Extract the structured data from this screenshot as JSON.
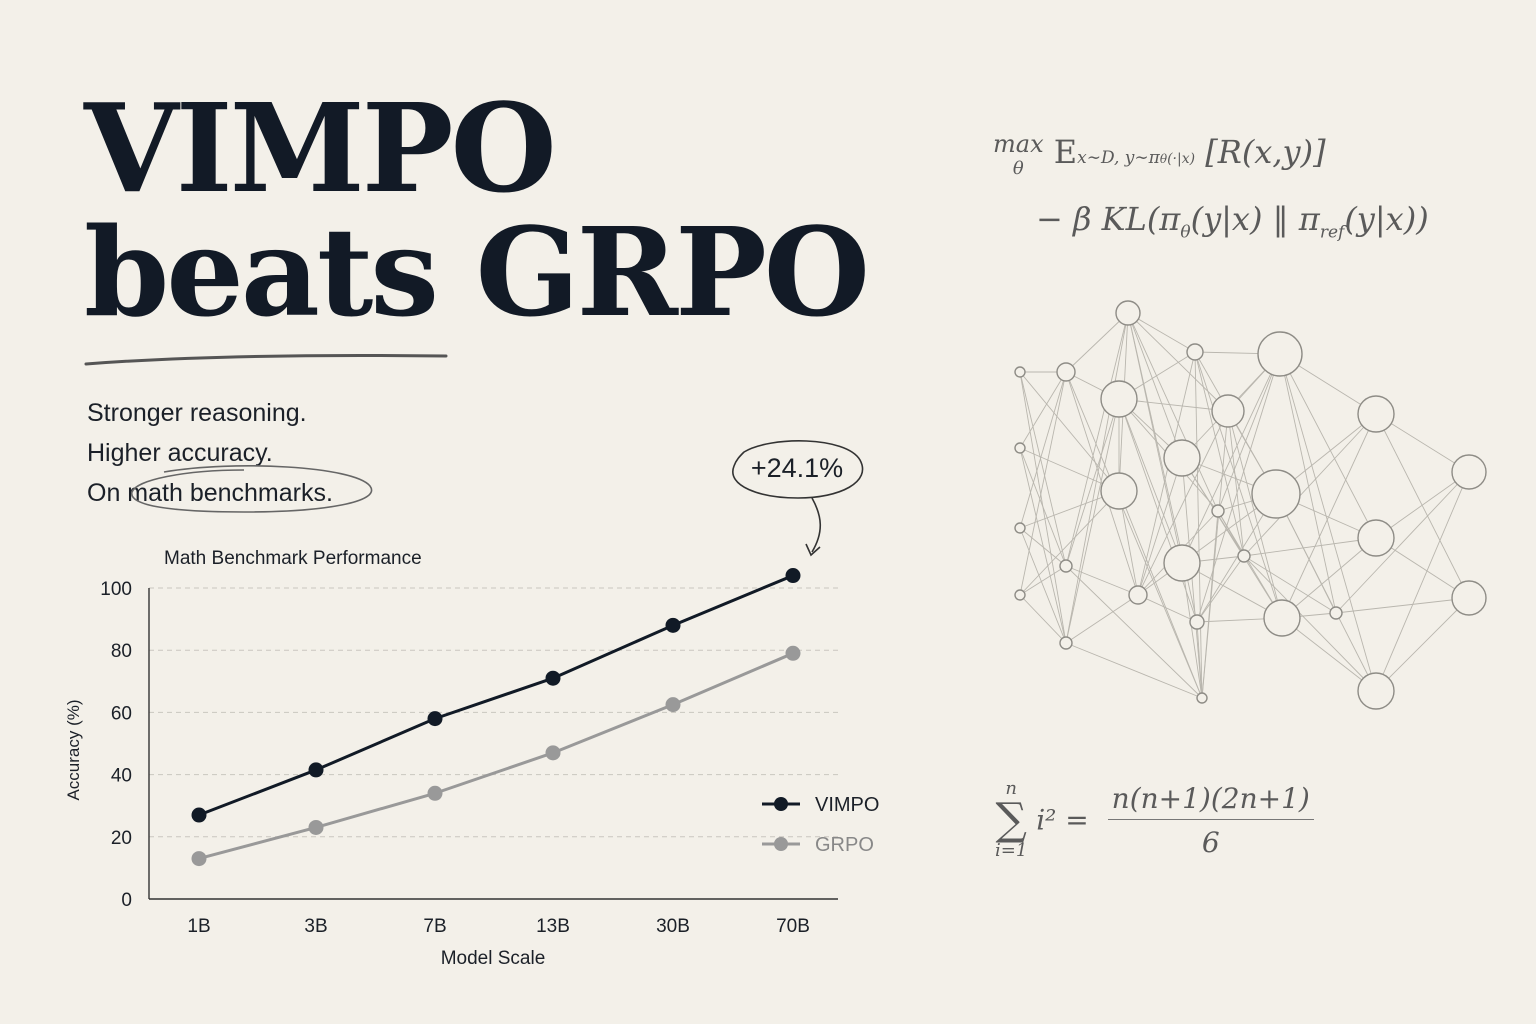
{
  "headline": {
    "line1": "VIMPO",
    "line2": "beats GRPO"
  },
  "tagline": {
    "line1": "Stronger reasoning.",
    "line2": "Higher accuracy.",
    "line3": "On math benchmarks."
  },
  "callout": {
    "text": "+24.1%"
  },
  "formulas": {
    "objective_line1": {
      "op": "max",
      "op_sub": "θ",
      "expectation": "E",
      "expectation_sub": "x∼D, y∼π",
      "expectation_sub2": "θ",
      "expectation_sub3": "(·|x)",
      "term": "[R(x,y)]"
    },
    "objective_line2": "− β KL(π",
    "objective_line2_sub": "θ",
    "objective_line2_mid": "(y|x) ‖ π",
    "objective_line2_sub2": "ref",
    "objective_line2_end": "(y|x))",
    "sum": {
      "symbol": "∑",
      "upper": "n",
      "lower": "i=1",
      "term": "i² =",
      "numerator": "n(n+1)(2n+1)",
      "denominator": "6"
    }
  },
  "chart_data": {
    "type": "line",
    "title": "Math Benchmark Performance",
    "xlabel": "Model Scale",
    "ylabel": "Accuracy (%)",
    "categories": [
      "1B",
      "3B",
      "7B",
      "13B",
      "30B",
      "70B"
    ],
    "ylim": [
      0,
      100
    ],
    "yticks": [
      0,
      20,
      40,
      60,
      80,
      100
    ],
    "grid": true,
    "legend": "right",
    "series": [
      {
        "name": "VIMPO",
        "color": "#111a26",
        "values": [
          27,
          41.5,
          58,
          71,
          88,
          104
        ]
      },
      {
        "name": "GRPO",
        "color": "#999999",
        "values": [
          13,
          23,
          34,
          47,
          62.5,
          79
        ]
      }
    ]
  }
}
